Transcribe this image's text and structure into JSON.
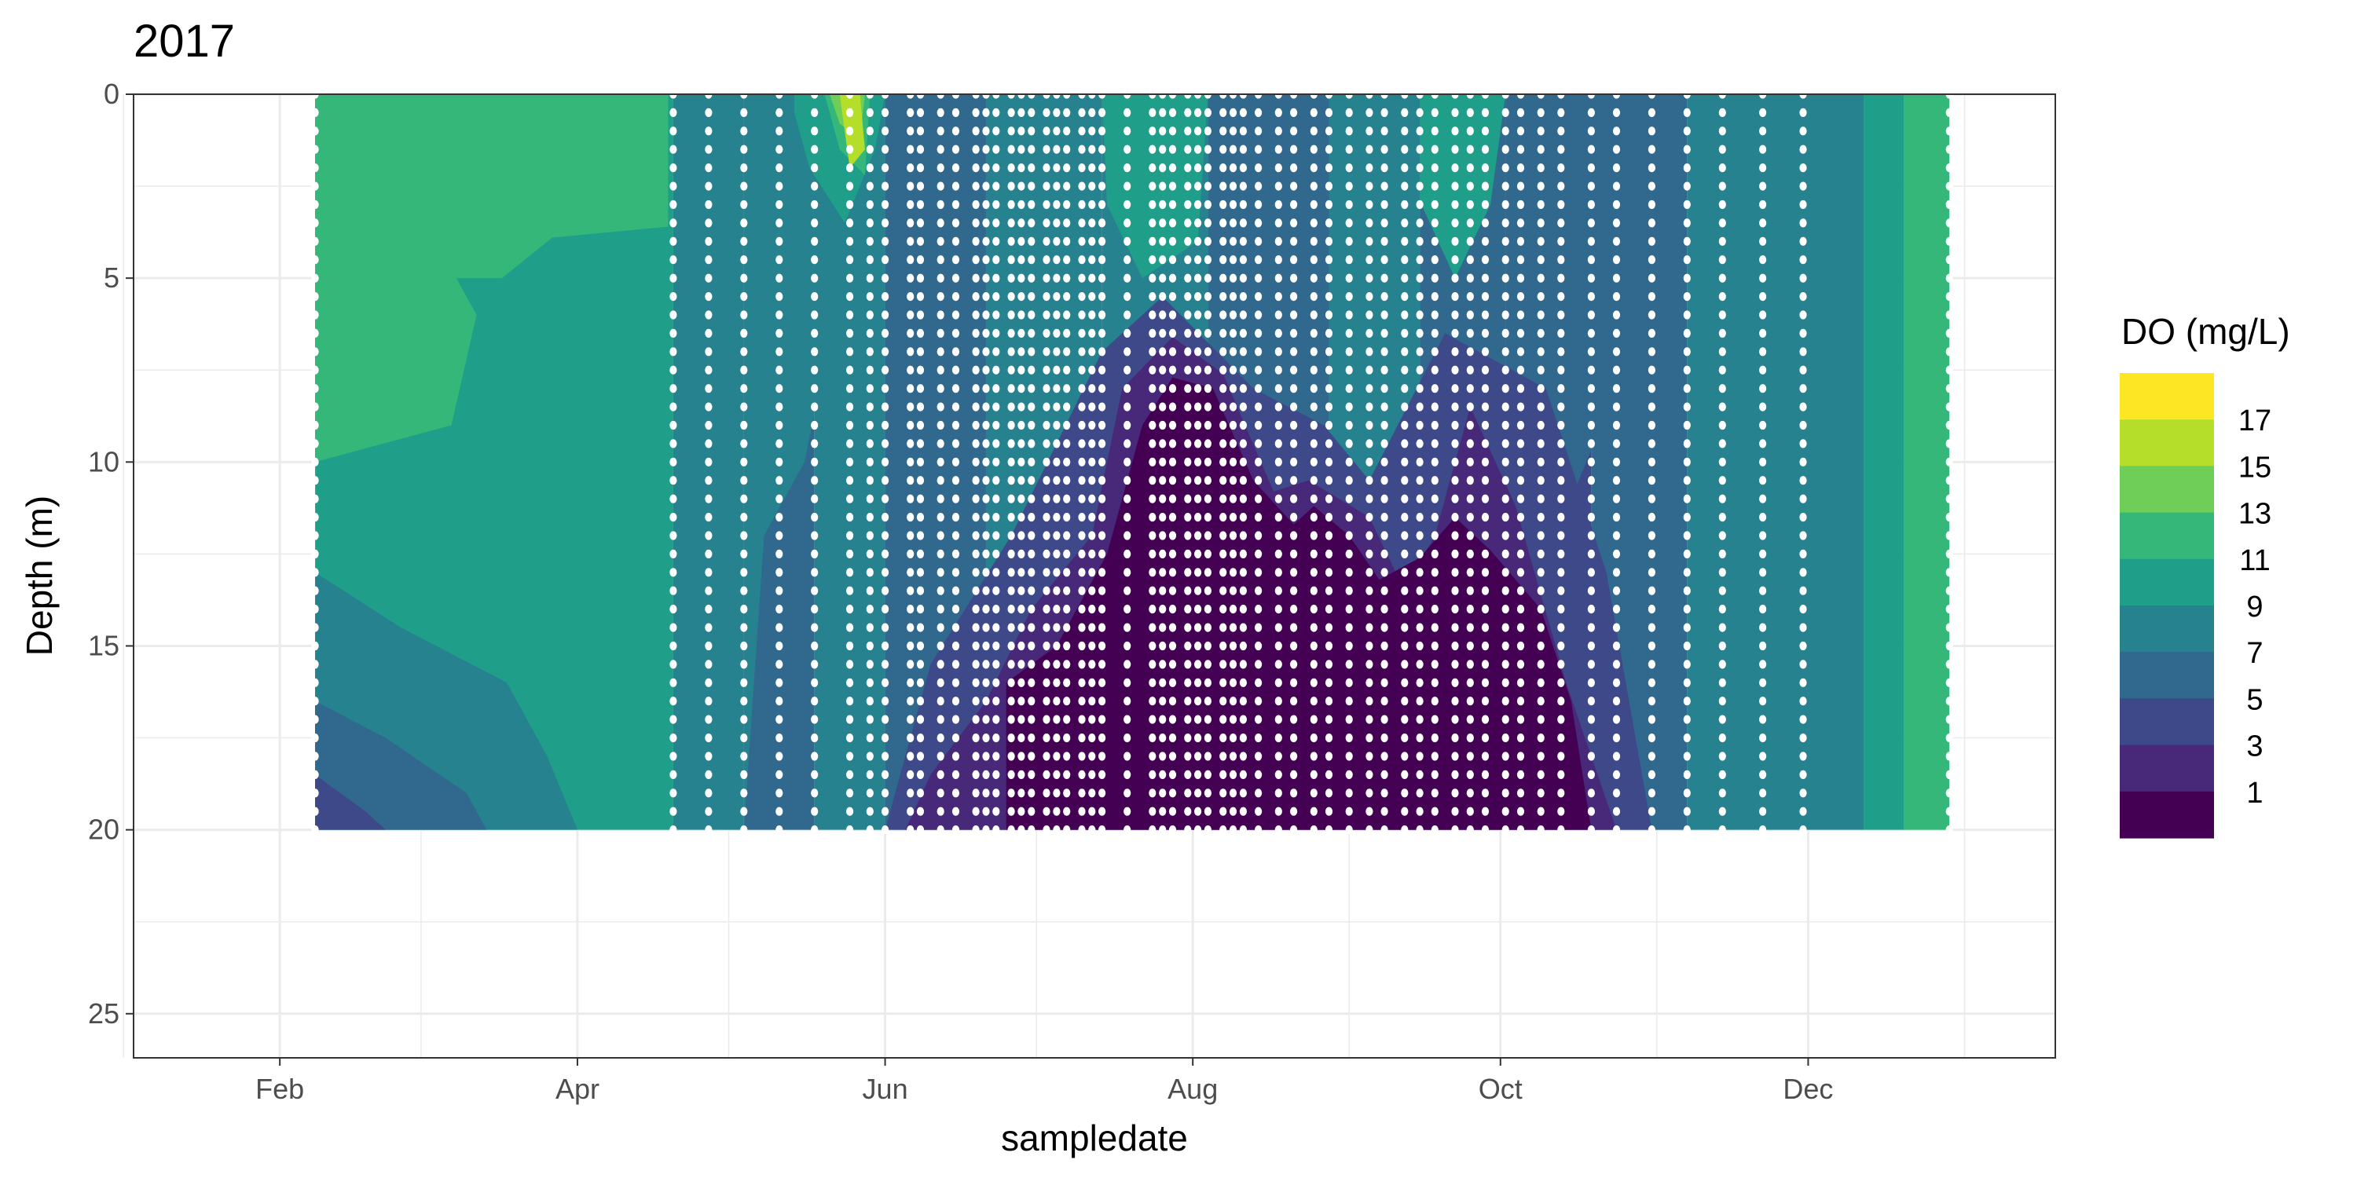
{
  "chart_data": {
    "type": "heatmap",
    "title": "2017",
    "xlabel": "sampledate",
    "ylabel": "Depth (m)",
    "x_ticks": [
      "Feb",
      "Apr",
      "Jun",
      "Aug",
      "Oct",
      "Dec"
    ],
    "y_ticks": [
      "0",
      "5",
      "10",
      "15",
      "20",
      "25"
    ],
    "y_reversed": true,
    "ylim": [
      0,
      26.2
    ],
    "xlim": [
      "2017-01-03",
      "2018-01-19"
    ],
    "data_extent": {
      "x": [
        "2017-02-08",
        "2017-12-29"
      ],
      "y": [
        0,
        20
      ]
    },
    "legend": {
      "title": "DO (mg/L)",
      "placement": "right",
      "labels": [
        "17",
        "15",
        "13",
        "11",
        "9",
        "7",
        "5",
        "3",
        "1"
      ],
      "bin_colors": [
        "#fde725",
        "#b5de2b",
        "#6ece58",
        "#35b779",
        "#1f9e89",
        "#26828e",
        "#31688e",
        "#3e4989",
        "#482878",
        "#440154"
      ]
    },
    "sample_dates": [
      "2017-02-08",
      "2017-04-20",
      "2017-04-27",
      "2017-05-04",
      "2017-05-11",
      "2017-05-18",
      "2017-05-25",
      "2017-05-29",
      "2017-06-01",
      "2017-06-06",
      "2017-06-08",
      "2017-06-12",
      "2017-06-15",
      "2017-06-19",
      "2017-06-21",
      "2017-06-23",
      "2017-06-26",
      "2017-06-28",
      "2017-06-30",
      "2017-07-03",
      "2017-07-05",
      "2017-07-07",
      "2017-07-10",
      "2017-07-12",
      "2017-07-14",
      "2017-07-19",
      "2017-07-24",
      "2017-07-26",
      "2017-07-28",
      "2017-07-31",
      "2017-08-02",
      "2017-08-04",
      "2017-08-07",
      "2017-08-09",
      "2017-08-11",
      "2017-08-14",
      "2017-08-18",
      "2017-08-21",
      "2017-08-25",
      "2017-08-28",
      "2017-09-01",
      "2017-09-05",
      "2017-09-08",
      "2017-09-12",
      "2017-09-15",
      "2017-09-18",
      "2017-09-22",
      "2017-09-25",
      "2017-09-28",
      "2017-10-02",
      "2017-10-05",
      "2017-10-09",
      "2017-10-13",
      "2017-10-19",
      "2017-10-24",
      "2017-10-31",
      "2017-11-07",
      "2017-11-14",
      "2017-11-22",
      "2017-11-30",
      "2017-12-29"
    ],
    "sample_depths": [
      0,
      0.5,
      1,
      1.5,
      2,
      2.5,
      3,
      3.5,
      4,
      4.5,
      5,
      5.5,
      6,
      6.5,
      7,
      7.5,
      8,
      8.5,
      9,
      9.5,
      10,
      10.5,
      11,
      11.5,
      12,
      12.5,
      13,
      13.5,
      14,
      14.5,
      15,
      15.5,
      16,
      16.5,
      17,
      17.5,
      18,
      18.5,
      19,
      19.5,
      20
    ],
    "contour_bands": [
      {
        "level": 1,
        "description_value": "0-2",
        "vertices": [
          [
            "2017-06-25",
            20
          ],
          [
            "2017-06-25",
            16
          ],
          [
            "2017-07-05",
            15
          ],
          [
            "2017-07-15",
            12.5
          ],
          [
            "2017-07-22",
            9
          ],
          [
            "2017-07-28",
            7.7
          ],
          [
            "2017-08-05",
            8
          ],
          [
            "2017-08-13",
            10.5
          ],
          [
            "2017-08-21",
            11.7
          ],
          [
            "2017-08-25",
            11.2
          ],
          [
            "2017-09-01",
            12
          ],
          [
            "2017-09-07",
            13.2
          ],
          [
            "2017-09-15",
            12.6
          ],
          [
            "2017-09-22",
            11.5
          ],
          [
            "2017-09-29",
            12.4
          ],
          [
            "2017-10-09",
            14
          ],
          [
            "2017-10-15",
            16.5
          ],
          [
            "2017-10-19",
            20
          ]
        ]
      },
      {
        "level": 3,
        "description_value": "2-4",
        "vertices": [
          [
            "2017-06-05",
            20
          ],
          [
            "2017-06-10",
            18.5
          ],
          [
            "2017-06-21",
            16.5
          ],
          [
            "2017-06-30",
            14
          ],
          [
            "2017-07-12",
            12
          ],
          [
            "2017-07-18",
            8
          ],
          [
            "2017-07-28",
            6.6
          ],
          [
            "2017-08-07",
            7.6
          ],
          [
            "2017-08-17",
            10.8
          ],
          [
            "2017-08-24",
            10.5
          ],
          [
            "2017-09-05",
            11.5
          ],
          [
            "2017-09-12",
            13.5
          ],
          [
            "2017-09-18",
            12
          ],
          [
            "2017-09-25",
            8.5
          ],
          [
            "2017-10-04",
            11.2
          ],
          [
            "2017-10-14",
            16
          ],
          [
            "2017-10-24",
            20
          ]
        ]
      },
      {
        "level": 5,
        "description_value": "4-6",
        "vertices": [
          [
            "2017-06-01",
            20
          ],
          [
            "2017-06-10",
            15.5
          ],
          [
            "2017-06-26",
            12
          ],
          [
            "2017-07-14",
            7
          ],
          [
            "2017-07-26",
            5.5
          ],
          [
            "2017-08-13",
            8
          ],
          [
            "2017-08-27",
            9
          ],
          [
            "2017-09-05",
            10.5
          ],
          [
            "2017-09-20",
            6.5
          ],
          [
            "2017-10-10",
            8
          ],
          [
            "2017-10-22",
            13
          ],
          [
            "2017-10-31",
            20
          ]
        ]
      },
      {
        "level": 13,
        "description_value": "12-14",
        "vertices": [
          [
            "2017-02-08",
            0
          ],
          [
            "2017-04-19",
            0
          ],
          [
            "2017-04-19",
            3.6
          ],
          [
            "2017-03-27",
            3.9
          ],
          [
            "2017-03-17",
            5
          ],
          [
            "2017-03-08",
            5
          ],
          [
            "2017-03-12",
            6
          ],
          [
            "2017-03-07",
            9
          ],
          [
            "2017-02-08",
            10
          ]
        ]
      },
      {
        "level": 17,
        "description_value": "16-18",
        "vertices": [
          [
            "2017-05-23",
            0
          ],
          [
            "2017-05-27",
            0
          ],
          [
            "2017-05-28",
            1.5
          ],
          [
            "2017-05-25",
            2
          ]
        ]
      }
    ]
  }
}
